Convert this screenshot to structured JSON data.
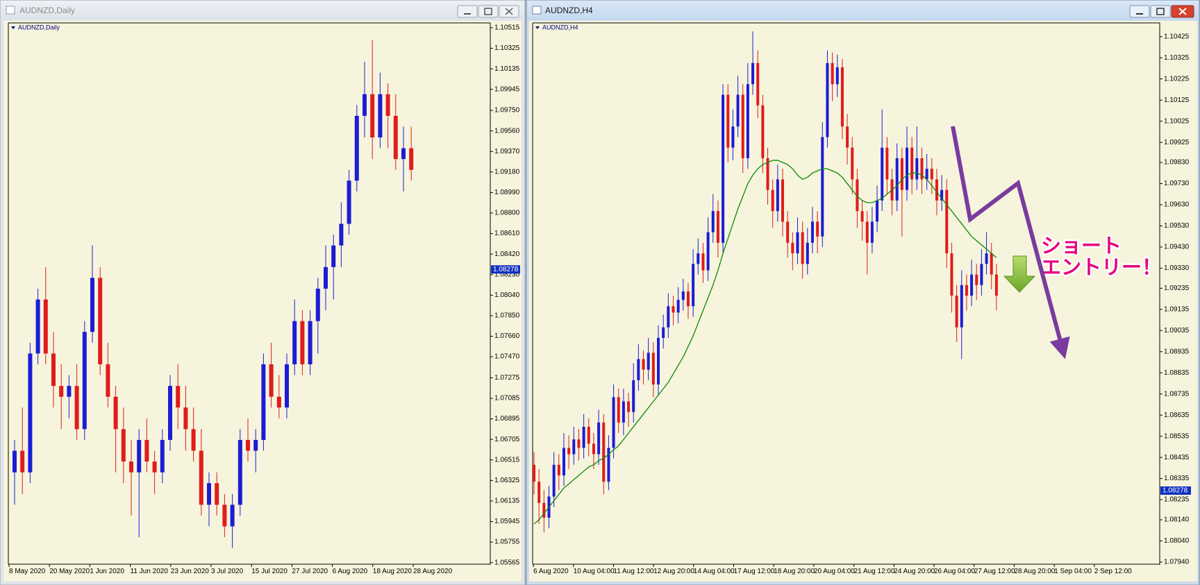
{
  "chart_data": [
    {
      "type": "candlestick",
      "title": "AUDNZD,Daily",
      "colors": {
        "up": "#1c1cd6",
        "down": "#e01c1c",
        "background": "#f6f4dc"
      },
      "ylim": [
        1.0555,
        1.1056
      ],
      "yticks": [
        1.10515,
        1.10325,
        1.10135,
        1.09945,
        {
          "value": 1.0975,
          "label": "1.09750"
        },
        {
          "value": 1.0956,
          "label": "1.09560"
        },
        {
          "value": 1.0937,
          "label": "1.09370"
        },
        {
          "value": 1.0918,
          "label": "1.09180"
        },
        {
          "value": 1.0899,
          "label": "1.08990"
        },
        {
          "value": 1.088,
          "label": "1.08800"
        },
        {
          "value": 1.0861,
          "label": "1.08610"
        },
        {
          "value": 1.0842,
          "label": "1.08420"
        },
        {
          "value": 1.0823,
          "label": "1.08230"
        },
        {
          "value": 1.0804,
          "label": "1.08040"
        },
        {
          "value": 1.0785,
          "label": "1.07850"
        },
        {
          "value": 1.0766,
          "label": "1.07660"
        },
        {
          "value": 1.0747,
          "label": "1.07470"
        },
        1.07275,
        1.07085,
        1.06895,
        1.06705,
        1.06515,
        1.06325,
        1.06135,
        1.05945,
        1.05755,
        1.05565
      ],
      "current_price": 1.08278,
      "x_labels": [
        "8 May 2020",
        "20 May 2020",
        "1 Jun 2020",
        "11 Jun 2020",
        "23 Jun 2020",
        "3 Jul 2020",
        "15 Jul 2020",
        "27 Jul 2020",
        "6 Aug 2020",
        "18 Aug 2020",
        "28 Aug 2020"
      ],
      "candles": [
        [
          1.064,
          1.067,
          1.061,
          1.066
        ],
        [
          1.066,
          1.07,
          1.062,
          1.064
        ],
        [
          1.064,
          1.076,
          1.063,
          1.075
        ],
        [
          1.075,
          1.081,
          1.074,
          1.08
        ],
        [
          1.08,
          1.083,
          1.074,
          1.075
        ],
        [
          1.075,
          1.077,
          1.07,
          1.072
        ],
        [
          1.072,
          1.074,
          1.068,
          1.071
        ],
        [
          1.071,
          1.073,
          1.069,
          1.072
        ],
        [
          1.072,
          1.074,
          1.067,
          1.068
        ],
        [
          1.068,
          1.078,
          1.067,
          1.077
        ],
        [
          1.077,
          1.085,
          1.076,
          1.082
        ],
        [
          1.082,
          1.083,
          1.073,
          1.074
        ],
        [
          1.074,
          1.076,
          1.07,
          1.071
        ],
        [
          1.071,
          1.072,
          1.064,
          1.068
        ],
        [
          1.068,
          1.07,
          1.063,
          1.065
        ],
        [
          1.065,
          1.067,
          1.06,
          1.064
        ],
        [
          1.064,
          1.068,
          1.058,
          1.067
        ],
        [
          1.067,
          1.069,
          1.064,
          1.065
        ],
        [
          1.065,
          1.066,
          1.062,
          1.064
        ],
        [
          1.064,
          1.068,
          1.063,
          1.067
        ],
        [
          1.067,
          1.073,
          1.066,
          1.072
        ],
        [
          1.072,
          1.074,
          1.068,
          1.07
        ],
        [
          1.07,
          1.072,
          1.066,
          1.068
        ],
        [
          1.068,
          1.07,
          1.065,
          1.066
        ],
        [
          1.066,
          1.068,
          1.06,
          1.061
        ],
        [
          1.061,
          1.064,
          1.059,
          1.063
        ],
        [
          1.063,
          1.064,
          1.06,
          1.061
        ],
        [
          1.061,
          1.062,
          1.058,
          1.059
        ],
        [
          1.059,
          1.062,
          1.057,
          1.061
        ],
        [
          1.061,
          1.068,
          1.06,
          1.067
        ],
        [
          1.067,
          1.069,
          1.065,
          1.066
        ],
        [
          1.066,
          1.068,
          1.064,
          1.067
        ],
        [
          1.067,
          1.075,
          1.066,
          1.074
        ],
        [
          1.074,
          1.076,
          1.07,
          1.071
        ],
        [
          1.071,
          1.073,
          1.069,
          1.07
        ],
        [
          1.07,
          1.075,
          1.069,
          1.074
        ],
        [
          1.074,
          1.08,
          1.073,
          1.078
        ],
        [
          1.078,
          1.079,
          1.073,
          1.074
        ],
        [
          1.074,
          1.079,
          1.073,
          1.078
        ],
        [
          1.078,
          1.082,
          1.075,
          1.081
        ],
        [
          1.081,
          1.085,
          1.079,
          1.083
        ],
        [
          1.083,
          1.086,
          1.08,
          1.085
        ],
        [
          1.085,
          1.089,
          1.083,
          1.087
        ],
        [
          1.087,
          1.092,
          1.086,
          1.091
        ],
        [
          1.091,
          1.098,
          1.09,
          1.097
        ],
        [
          1.097,
          1.102,
          1.095,
          1.099
        ],
        [
          1.099,
          1.104,
          1.093,
          1.095
        ],
        [
          1.095,
          1.101,
          1.094,
          1.099
        ],
        [
          1.099,
          1.1,
          1.094,
          1.097
        ],
        [
          1.097,
          1.099,
          1.092,
          1.093
        ],
        [
          1.093,
          1.096,
          1.09,
          1.094
        ],
        [
          1.094,
          1.096,
          1.091,
          1.092
        ]
      ]
    },
    {
      "type": "candlestick",
      "title": "AUDNZD,H4",
      "colors": {
        "up": "#1c1cd6",
        "down": "#e01c1c",
        "background": "#f6f4dc"
      },
      "ylim": [
        1.0793,
        1.1049
      ],
      "yticks": [
        1.10425,
        1.10325,
        1.10225,
        1.10125,
        1.10025,
        1.09925,
        {
          "value": 1.0983,
          "label": "1.09830"
        },
        {
          "value": 1.0973,
          "label": "1.09730"
        },
        {
          "value": 1.0963,
          "label": "1.09630"
        },
        {
          "value": 1.0953,
          "label": "1.09530"
        },
        {
          "value": 1.0943,
          "label": "1.09430"
        },
        {
          "value": 1.0933,
          "label": "1.09330"
        },
        1.09235,
        1.09135,
        1.09035,
        1.08935,
        1.08835,
        1.08735,
        1.08635,
        1.08535,
        1.08435,
        1.08335,
        1.08235,
        {
          "value": 1.0814,
          "label": "1.08140"
        },
        {
          "value": 1.0804,
          "label": "1.08040"
        },
        {
          "value": 1.0794,
          "label": "1.07940"
        }
      ],
      "current_price": 1.08278,
      "x_labels": [
        "6 Aug 2020",
        "10 Aug 04:00",
        "11 Aug 12:00",
        "12 Aug 20:00",
        "14 Aug 04:00",
        "17 Aug 12:00",
        "18 Aug 20:00",
        "20 Aug 04:00",
        "21 Aug 12:00",
        "24 Aug 20:00",
        "26 Aug 04:00",
        "27 Aug 12:00",
        "28 Aug 20:00",
        "1 Sep 04:00",
        "2 Sep 12:00"
      ],
      "candles": [
        [
          1.084,
          1.0846,
          1.0826,
          1.0832
        ],
        [
          1.0832,
          1.0838,
          1.0812,
          1.0822
        ],
        [
          1.0822,
          1.0828,
          1.0808,
          1.0815
        ],
        [
          1.0815,
          1.083,
          1.081,
          1.0825
        ],
        [
          1.0825,
          1.0846,
          1.082,
          1.084
        ],
        [
          1.084,
          1.0845,
          1.0828,
          1.0835
        ],
        [
          1.0835,
          1.0855,
          1.083,
          1.0848
        ],
        [
          1.0848,
          1.0854,
          1.0838,
          1.0845
        ],
        [
          1.0845,
          1.0858,
          1.084,
          1.0852
        ],
        [
          1.0852,
          1.0857,
          1.0842,
          1.0848
        ],
        [
          1.0848,
          1.0864,
          1.0843,
          1.0858
        ],
        [
          1.0858,
          1.0862,
          1.0844,
          1.085
        ],
        [
          1.085,
          1.0855,
          1.0838,
          1.0845
        ],
        [
          1.0845,
          1.0866,
          1.084,
          1.086
        ],
        [
          1.086,
          1.0864,
          1.0826,
          1.0832
        ],
        [
          1.0832,
          1.0854,
          1.0828,
          1.0848
        ],
        [
          1.0848,
          1.0878,
          1.0843,
          1.0872
        ],
        [
          1.0872,
          1.0876,
          1.0855,
          1.086
        ],
        [
          1.086,
          1.0876,
          1.0854,
          1.087
        ],
        [
          1.087,
          1.0874,
          1.0858,
          1.0865
        ],
        [
          1.0865,
          1.0888,
          1.086,
          1.088
        ],
        [
          1.088,
          1.0897,
          1.0875,
          1.089
        ],
        [
          1.089,
          1.0894,
          1.0878,
          1.0885
        ],
        [
          1.0885,
          1.09,
          1.088,
          1.0893
        ],
        [
          1.0893,
          1.0898,
          1.0872,
          1.0878
        ],
        [
          1.0878,
          1.0906,
          1.0873,
          1.09
        ],
        [
          1.09,
          1.0911,
          1.0895,
          1.0905
        ],
        [
          1.0905,
          1.0921,
          1.09,
          1.0915
        ],
        [
          1.0915,
          1.092,
          1.0906,
          1.0912
        ],
        [
          1.0912,
          1.0924,
          1.0907,
          1.0918
        ],
        [
          1.0918,
          1.0928,
          1.0913,
          1.0922
        ],
        [
          1.0922,
          1.0926,
          1.0909,
          1.0915
        ],
        [
          1.0915,
          1.0942,
          1.091,
          1.0935
        ],
        [
          1.0935,
          1.0947,
          1.093,
          1.094
        ],
        [
          1.094,
          1.0945,
          1.0926,
          1.0932
        ],
        [
          1.0932,
          1.0957,
          1.0927,
          1.095
        ],
        [
          1.095,
          1.0968,
          1.0945,
          1.096
        ],
        [
          1.096,
          1.0965,
          1.0938,
          1.0945
        ],
        [
          1.0945,
          1.102,
          1.094,
          1.1015
        ],
        [
          1.1015,
          1.102,
          1.0983,
          1.099
        ],
        [
          1.099,
          1.1008,
          1.0984,
          1.1
        ],
        [
          1.1,
          1.1024,
          1.0995,
          1.1015
        ],
        [
          1.1015,
          1.102,
          1.0978,
          1.0985
        ],
        [
          1.0985,
          1.103,
          1.098,
          1.102
        ],
        [
          1.102,
          1.1045,
          1.1015,
          1.103
        ],
        [
          1.103,
          1.1036,
          1.1004,
          1.101
        ],
        [
          1.101,
          1.1015,
          1.0978,
          1.0985
        ],
        [
          1.0985,
          1.099,
          1.0963,
          1.097
        ],
        [
          1.097,
          1.0975,
          1.0952,
          1.096
        ],
        [
          1.096,
          1.0982,
          1.0955,
          1.0975
        ],
        [
          1.0975,
          1.098,
          1.0948,
          1.0955
        ],
        [
          1.0955,
          1.096,
          1.0938,
          1.0945
        ],
        [
          1.0945,
          1.095,
          1.0932,
          1.094
        ],
        [
          1.094,
          1.0957,
          1.0935,
          1.095
        ],
        [
          1.095,
          1.0955,
          1.0928,
          1.0935
        ],
        [
          1.0935,
          1.0952,
          1.093,
          1.0945
        ],
        [
          1.0945,
          1.0962,
          1.094,
          1.0955
        ],
        [
          1.0955,
          1.096,
          1.094,
          1.0948
        ],
        [
          1.0948,
          1.1002,
          1.0943,
          1.0995
        ],
        [
          1.0995,
          1.1036,
          1.099,
          1.103
        ],
        [
          1.103,
          1.1035,
          1.1012,
          1.102
        ],
        [
          1.102,
          1.1034,
          1.1014,
          1.1028
        ],
        [
          1.1028,
          1.1032,
          1.0994,
          1.1
        ],
        [
          1.1,
          1.1006,
          1.0982,
          1.099
        ],
        [
          1.099,
          1.0995,
          1.0968,
          1.0975
        ],
        [
          1.0975,
          1.098,
          1.0952,
          1.096
        ],
        [
          1.096,
          1.0965,
          1.0946,
          1.0955
        ],
        [
          1.0955,
          1.096,
          1.093,
          1.0945
        ],
        [
          1.0945,
          1.0962,
          1.094,
          1.0955
        ],
        [
          1.0955,
          1.0972,
          1.095,
          1.0965
        ],
        [
          1.0965,
          1.1008,
          1.096,
          1.099
        ],
        [
          1.099,
          1.0995,
          1.0968,
          1.0975
        ],
        [
          1.0975,
          1.098,
          1.0958,
          1.0965
        ],
        [
          1.0965,
          1.0992,
          1.096,
          1.0985
        ],
        [
          1.0985,
          1.099,
          1.0948,
          1.097
        ],
        [
          1.097,
          1.1,
          1.0965,
          1.099
        ],
        [
          1.099,
          1.0995,
          1.0968,
          1.0975
        ],
        [
          1.0975,
          1.1,
          1.097,
          1.0985
        ],
        [
          1.0985,
          1.099,
          1.0968,
          1.0975
        ],
        [
          1.0975,
          1.0987,
          1.097,
          1.098
        ],
        [
          1.098,
          1.0985,
          1.0968,
          1.0975
        ],
        [
          1.0975,
          1.098,
          1.0958,
          1.0965
        ],
        [
          1.0965,
          1.0977,
          1.096,
          1.097
        ],
        [
          1.097,
          1.0975,
          1.0933,
          1.094
        ],
        [
          1.094,
          1.0945,
          1.0912,
          1.092
        ],
        [
          1.092,
          1.0925,
          1.0898,
          1.0905
        ],
        [
          1.0905,
          1.0932,
          1.089,
          1.0925
        ],
        [
          1.0925,
          1.093,
          1.0913,
          1.092
        ],
        [
          1.092,
          1.0937,
          1.0915,
          1.093
        ],
        [
          1.093,
          1.0935,
          1.0918,
          1.0925
        ],
        [
          1.0925,
          1.0942,
          1.092,
          1.0935
        ],
        [
          1.0935,
          1.095,
          1.093,
          1.094
        ],
        [
          1.094,
          1.0945,
          1.0923,
          1.093
        ],
        [
          1.093,
          1.0935,
          1.0913,
          1.092
        ]
      ],
      "ma": {
        "color": "#0a8a0a",
        "values": [
          1.0812,
          1.0814,
          1.0817,
          1.082,
          1.0823,
          1.0826,
          1.0829,
          1.0831,
          1.0833,
          1.0835,
          1.0837,
          1.0839,
          1.084,
          1.0842,
          1.0843,
          1.0845,
          1.0847,
          1.0849,
          1.0852,
          1.0855,
          1.0858,
          1.0861,
          1.0864,
          1.0867,
          1.087,
          1.0873,
          1.0876,
          1.0879,
          1.0883,
          1.0887,
          1.0891,
          1.0896,
          1.0901,
          1.0907,
          1.0913,
          1.0919,
          1.0925,
          1.0932,
          1.094,
          1.0947,
          1.0954,
          1.0961,
          1.0967,
          1.0973,
          1.0977,
          1.098,
          1.0982,
          1.0983,
          1.0984,
          1.0984,
          1.0983,
          1.0982,
          1.098,
          1.0977,
          1.0975,
          1.0976,
          1.0978,
          1.0979,
          1.098,
          1.098,
          1.0979,
          1.0978,
          1.0976,
          1.0973,
          1.097,
          1.0967,
          1.0965,
          1.0964,
          1.0964,
          1.0965,
          1.0966,
          1.0968,
          1.097,
          1.0972,
          1.0975,
          1.0977,
          1.0978,
          1.0978,
          1.0977,
          1.0975,
          1.0972,
          1.0969,
          1.0966,
          1.0963,
          1.096,
          1.0957,
          1.0954,
          1.0951,
          1.0948,
          1.0946,
          1.0944,
          1.0942,
          1.094,
          1.0938
        ]
      },
      "annotations": [
        "ショート",
        "エントリー！"
      ]
    }
  ]
}
